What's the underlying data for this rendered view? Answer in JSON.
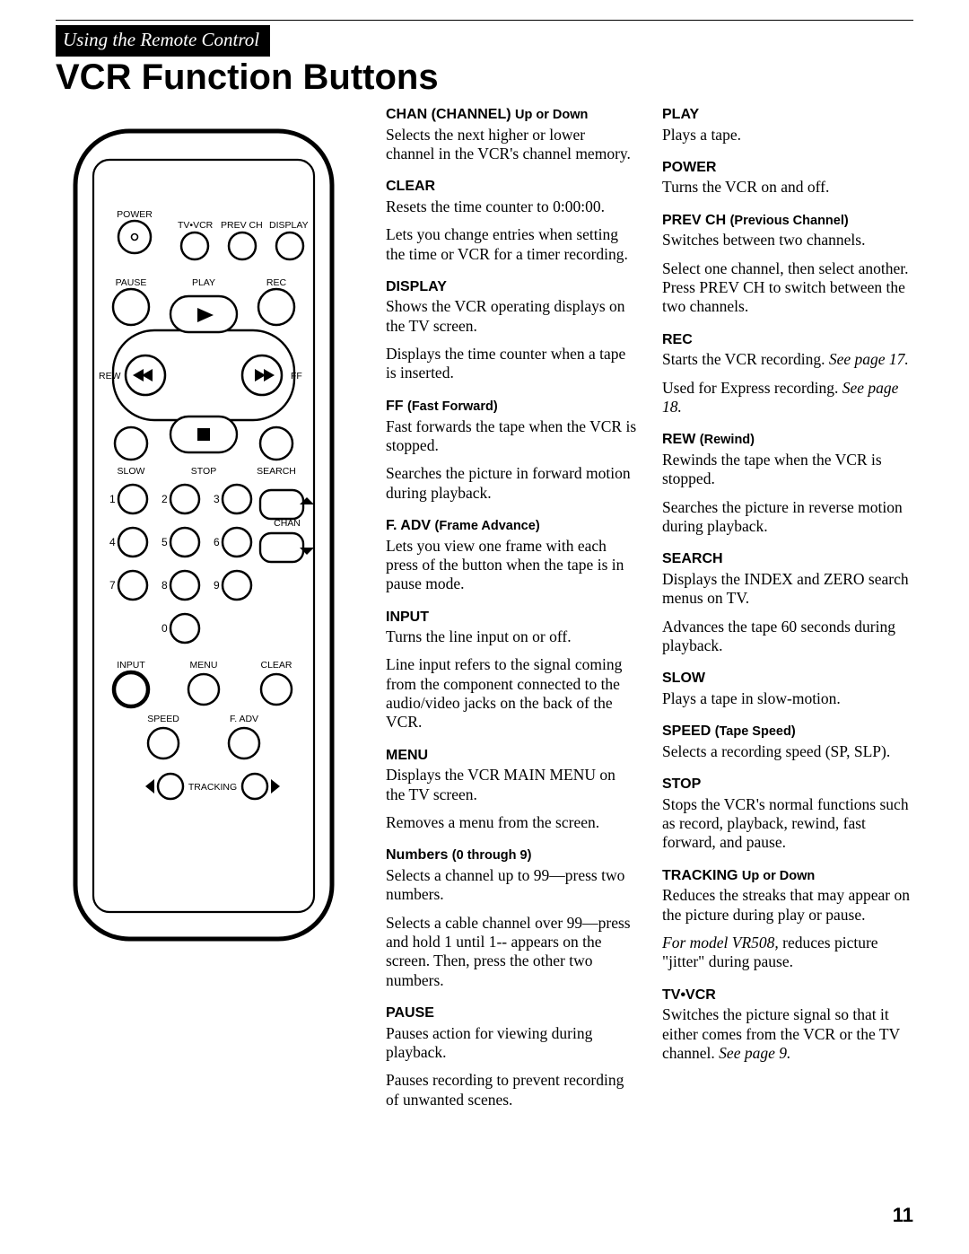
{
  "section": "Using the Remote Control",
  "title": "VCR Function Buttons",
  "page_number": "11",
  "remote": {
    "labels": {
      "power": "POWER",
      "tvvcr": "TV•VCR",
      "prevch": "PREV CH",
      "display": "DISPLAY",
      "pause": "PAUSE",
      "play": "PLAY",
      "rec": "REC",
      "rew": "REW",
      "ff": "FF",
      "slow": "SLOW",
      "stop": "STOP",
      "search": "SEARCH",
      "chan": "CHAN",
      "input": "INPUT",
      "menu": "MENU",
      "clear": "CLEAR",
      "speed": "SPEED",
      "fadv": "F. ADV",
      "tracking": "TRACKING"
    },
    "numbers": [
      "1",
      "2",
      "3",
      "4",
      "5",
      "6",
      "7",
      "8",
      "9",
      "0"
    ]
  },
  "col1": [
    {
      "h": "CHAN (CHANNEL) ",
      "sub": "Up or Down",
      "p": [
        "Selects the next higher or lower channel in the VCR's channel memory."
      ]
    },
    {
      "h": "CLEAR",
      "p": [
        "Resets the time counter to 0:00:00.",
        "Lets you change entries when setting the time or VCR for a timer recording."
      ]
    },
    {
      "h": "DISPLAY",
      "p": [
        "Shows the VCR operating displays on the TV screen.",
        "Displays the time counter when a tape is inserted."
      ]
    },
    {
      "h": "FF ",
      "sub": "(Fast Forward)",
      "p": [
        "Fast forwards the tape when the VCR is stopped.",
        "Searches the picture in forward motion during playback."
      ]
    },
    {
      "h": "F. ADV ",
      "sub": "(Frame Advance)",
      "p": [
        "Lets you view one frame with each press of the button when the tape is in pause mode."
      ]
    },
    {
      "h": "INPUT",
      "p": [
        "Turns the line input on or off.",
        "Line input refers to the signal coming from the component connected to the audio/video jacks on the back of the VCR."
      ]
    },
    {
      "h": "MENU",
      "p": [
        "Displays the VCR MAIN MENU on the TV screen.",
        "Removes a menu from the screen."
      ]
    },
    {
      "h": "Numbers ",
      "sub": "(0 through 9)",
      "p": [
        "Selects a channel up to 99—press two numbers.",
        "Selects a cable channel over 99—press and hold 1 until 1-- appears on the screen.  Then, press the other two numbers."
      ]
    },
    {
      "h": "PAUSE",
      "p": [
        "Pauses action for viewing during playback.",
        "Pauses recording to prevent recording of unwanted scenes."
      ]
    }
  ],
  "col2": [
    {
      "h": "PLAY",
      "p": [
        "Plays a tape."
      ]
    },
    {
      "h": "POWER",
      "p": [
        "Turns the VCR on and off."
      ]
    },
    {
      "h": "PREV CH ",
      "sub": "(Previous Channel)",
      "p": [
        "Switches between two channels.",
        "Select one channel, then select another.  Press PREV CH to switch between the two channels."
      ]
    },
    {
      "h": "REC",
      "p": [
        "Starts the VCR recording. <i>See page 17.</i>",
        "Used for Express recording. <i>See page 18.</i>"
      ]
    },
    {
      "h": "REW ",
      "sub": "(Rewind)",
      "p": [
        "Rewinds the tape when the VCR is stopped.",
        "Searches the picture in reverse motion during playback."
      ]
    },
    {
      "h": "SEARCH",
      "p": [
        "Displays the INDEX and ZERO search menus on TV.",
        "Advances the tape 60 seconds during playback."
      ]
    },
    {
      "h": "SLOW",
      "p": [
        "Plays a tape in slow-motion."
      ]
    },
    {
      "h": "SPEED ",
      "sub": "(Tape Speed)",
      "p": [
        "Selects a recording speed (SP, SLP)."
      ]
    },
    {
      "h": "STOP",
      "p": [
        "Stops the VCR's normal functions such as record, playback, rewind, fast forward, and pause."
      ]
    },
    {
      "h": "TRACKING ",
      "sub": "Up or Down",
      "p": [
        "Reduces the streaks that may appear on the picture during play or pause.",
        "<i>For model VR508,</i> reduces picture \"jitter\" during pause."
      ]
    },
    {
      "h": "TV•VCR",
      "p": [
        "Switches the picture signal so that it either comes from the VCR or the TV channel.  <i>See page 9.</i>"
      ]
    }
  ]
}
